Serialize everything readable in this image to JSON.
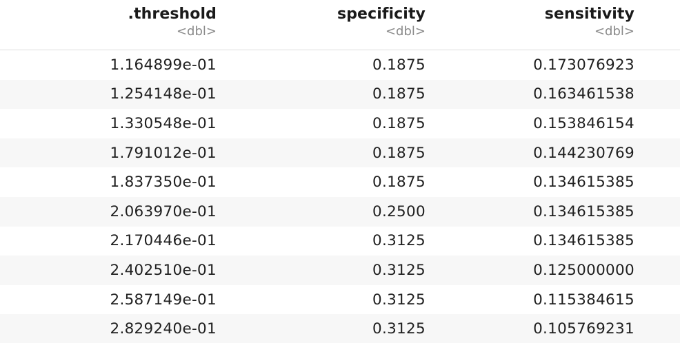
{
  "table": {
    "columns": [
      {
        "name": ".threshold",
        "type": "<dbl>"
      },
      {
        "name": "specificity",
        "type": "<dbl>"
      },
      {
        "name": "sensitivity",
        "type": "<dbl>"
      }
    ],
    "rows": [
      [
        "1.164899e-01",
        "0.1875",
        "0.173076923"
      ],
      [
        "1.254148e-01",
        "0.1875",
        "0.163461538"
      ],
      [
        "1.330548e-01",
        "0.1875",
        "0.153846154"
      ],
      [
        "1.791012e-01",
        "0.1875",
        "0.144230769"
      ],
      [
        "1.837350e-01",
        "0.1875",
        "0.134615385"
      ],
      [
        "2.063970e-01",
        "0.2500",
        "0.134615385"
      ],
      [
        "2.170446e-01",
        "0.3125",
        "0.134615385"
      ],
      [
        "2.402510e-01",
        "0.3125",
        "0.125000000"
      ],
      [
        "2.587149e-01",
        "0.3125",
        "0.115384615"
      ],
      [
        "2.829240e-01",
        "0.3125",
        "0.105769231"
      ]
    ]
  }
}
